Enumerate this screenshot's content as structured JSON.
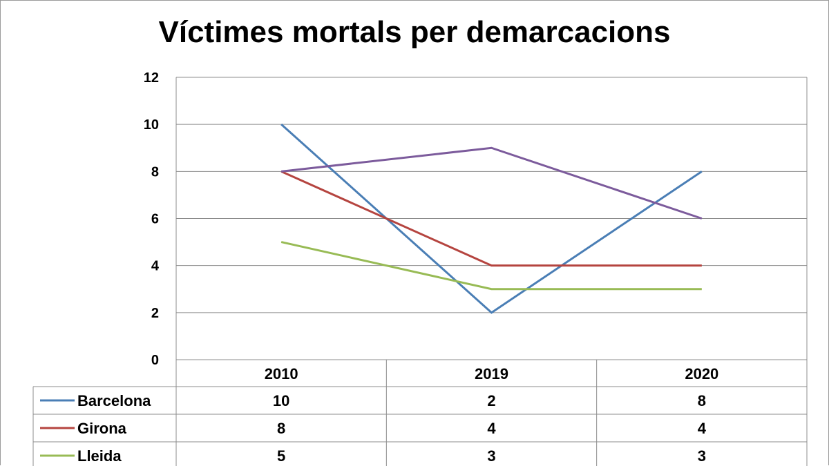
{
  "chart_data": {
    "type": "line",
    "title": "Víctimes mortals per demarcacions",
    "categories": [
      "2010",
      "2019",
      "2020"
    ],
    "ylim": [
      0,
      12
    ],
    "yticks": [
      0,
      2,
      4,
      6,
      8,
      10,
      12
    ],
    "grid": true,
    "legend": "data-table",
    "series": [
      {
        "name": "Barcelona",
        "values": [
          10,
          2,
          8
        ],
        "color": "#4a7eb5"
      },
      {
        "name": "Girona",
        "values": [
          8,
          4,
          4
        ],
        "color": "#b5443f"
      },
      {
        "name": "Lleida",
        "values": [
          5,
          3,
          3
        ],
        "color": "#98bb55"
      },
      {
        "values": [
          8,
          9,
          6
        ],
        "color": "#7c5b9c"
      }
    ]
  }
}
